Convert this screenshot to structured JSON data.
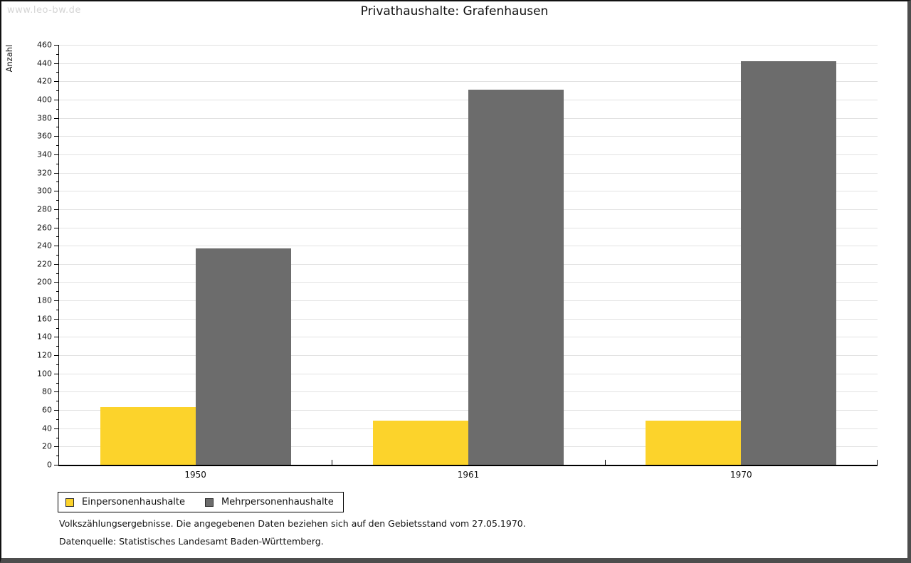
{
  "watermark": "www.leo-bw.de",
  "header": {
    "title": "Privathaushalte: Grafenhausen"
  },
  "chart_data": {
    "type": "bar",
    "title": "Privathaushalte: Grafenhausen",
    "xlabel": "",
    "ylabel": "Anzahl",
    "categories": [
      "1950",
      "1961",
      "1970"
    ],
    "series": [
      {
        "name": "Einpersonenhaushalte",
        "color": "#FCD32B",
        "values": [
          63,
          48,
          48
        ]
      },
      {
        "name": "Mehrpersonenhaushalte",
        "color": "#6C6C6C",
        "values": [
          237,
          411,
          442
        ]
      }
    ],
    "ylim": [
      0,
      460
    ],
    "ytick_step": 20,
    "yminor_tick_step": 10,
    "grid": true,
    "legend_position": "bottom-left",
    "bar_color_yellow": "#FCD32B",
    "bar_color_gray": "#6C6C6C",
    "gridline_color": "#E2E2E2"
  },
  "footer": {
    "line1": "Volkszählungsergebnisse. Die angegebenen Daten beziehen sich auf den Gebietsstand vom 27.05.1970.",
    "line2": "Datenquelle: Statistisches Landesamt Baden-Württemberg."
  }
}
